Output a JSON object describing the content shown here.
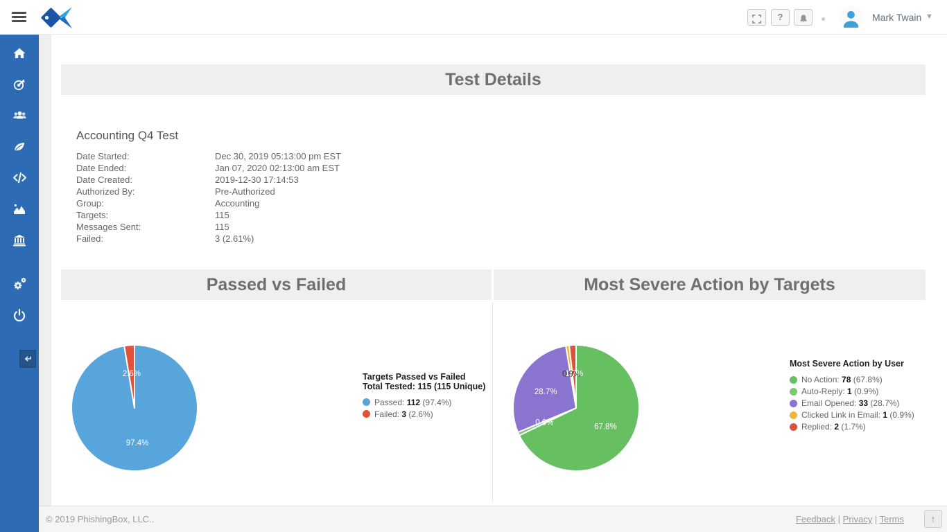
{
  "topbar": {
    "help_label": "?",
    "user": {
      "name": "Mark Twain"
    }
  },
  "sidebar": {
    "color": "#2d6cb4",
    "items": [
      "home",
      "campaign-target",
      "users",
      "templates-leaf",
      "code",
      "reports-chart",
      "institution-bank",
      "settings-gears",
      "logout-power"
    ]
  },
  "page": {
    "title": "Test Details"
  },
  "test": {
    "name": "Accounting Q4 Test",
    "fields": [
      {
        "label": "Date Started:",
        "value": "Dec 30, 2019 05:13:00 pm EST"
      },
      {
        "label": "Date Ended:",
        "value": "Jan 07, 2020 02:13:00 am EST"
      },
      {
        "label": "Date Created:",
        "value": "2019-12-30 17:14:53"
      },
      {
        "label": "Authorized By:",
        "value": "Pre-Authorized"
      },
      {
        "label": "Group:",
        "value": "Accounting"
      },
      {
        "label": "Targets:",
        "value": "115"
      },
      {
        "label": "Messages Sent:",
        "value": "115"
      },
      {
        "label": "Failed:",
        "value": "3 (2.61%)"
      }
    ]
  },
  "sections": {
    "left": "Passed vs Failed",
    "right": "Most Severe Action by Targets"
  },
  "chart_data": [
    {
      "type": "pie",
      "title": "Targets Passed vs Failed",
      "subtitle": "Total Tested: 115 (115 Unique)",
      "total": 115,
      "legend_position": "right",
      "slices": [
        {
          "label": "Passed",
          "value": 112,
          "pct": "97.4%",
          "color": "#58A5DC",
          "label_color": "#FFFFFF"
        },
        {
          "label": "Failed",
          "value": 3,
          "pct": "2.6%",
          "color": "#E0523A",
          "label_color": "#FFFFFF"
        }
      ]
    },
    {
      "type": "pie",
      "title": "Most Severe Action by User",
      "subtitle": "",
      "total": 115,
      "legend_position": "right",
      "slices": [
        {
          "label": "No Action",
          "value": 78,
          "pct": "67.8%",
          "color": "#66BF60",
          "label_color": "#FFFFFF"
        },
        {
          "label": "Auto-Reply",
          "value": 1,
          "pct": "0.9%",
          "color": "#79C96E",
          "label_color": "#FFFFFF"
        },
        {
          "label": "Email Opened",
          "value": 33,
          "pct": "28.7%",
          "color": "#8B74CF",
          "label_color": "#FFFFFF"
        },
        {
          "label": "Clicked Link in Email",
          "value": 1,
          "pct": "0.9%",
          "color": "#EDB73F",
          "label_color": "#333333"
        },
        {
          "label": "Replied",
          "value": 2,
          "pct": "1.7%",
          "color": "#DD4F3E",
          "label_color": "#FFFFFF"
        }
      ]
    }
  ],
  "footer": {
    "copyright": "© 2019 PhishingBox, LLC..",
    "links": [
      "Feedback",
      "Privacy",
      "Terms"
    ],
    "separator": " | ",
    "to_top_label": "↑"
  }
}
